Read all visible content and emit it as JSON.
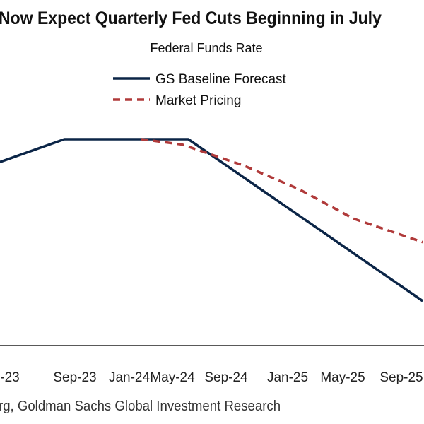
{
  "title": "Now Expect Quarterly Fed Cuts Beginning in July",
  "source": "rg, Goldman Sachs Global Investment Research",
  "colors": {
    "baseline": "#0b2547",
    "market": "#b03a3a",
    "axis": "#222222"
  },
  "chart_data": {
    "type": "line",
    "title": "Federal Funds Rate",
    "x_tick_labels": [
      "-23",
      "Sep-23",
      "Jan-24",
      "May-24",
      "Sep-24",
      "Jan-25",
      "May-25",
      "Sep-25"
    ],
    "legend_placement": "top-center",
    "grid": false,
    "series": [
      {
        "name": "GS Baseline Forecast",
        "style": "solid",
        "points": [
          {
            "x": "2023-05-15",
            "y": 5.25
          },
          {
            "x": "2023-08-15",
            "y": 5.375
          },
          {
            "x": "2024-05-15",
            "y": 5.375
          },
          {
            "x": "2025-10-15",
            "y": 4.0
          }
        ]
      },
      {
        "name": "Market Pricing",
        "style": "dashed",
        "points": [
          {
            "x": "2024-02-01",
            "y": 5.375
          },
          {
            "x": "2024-05-01",
            "y": 5.33
          },
          {
            "x": "2024-09-15",
            "y": 5.15
          },
          {
            "x": "2025-01-15",
            "y": 4.95
          },
          {
            "x": "2025-05-15",
            "y": 4.7
          },
          {
            "x": "2025-10-15",
            "y": 4.5
          }
        ]
      }
    ]
  }
}
